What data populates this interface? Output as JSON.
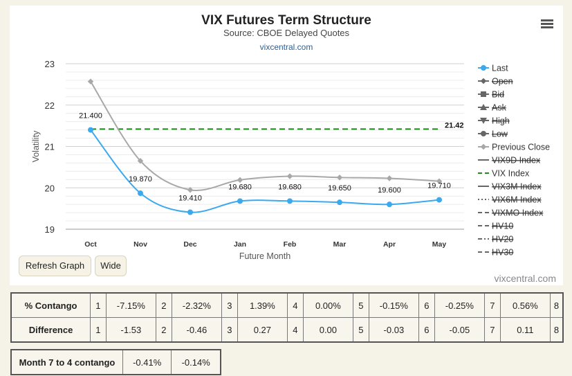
{
  "header": {
    "title": "VIX Futures Term Structure",
    "subtitle": "Source: CBOE Delayed Quotes",
    "url": "vixcentral.com"
  },
  "chart_data": {
    "type": "line",
    "xlabel": "Future Month",
    "ylabel": "Volatility",
    "categories": [
      "Oct",
      "Nov",
      "Dec",
      "Jan",
      "Feb",
      "Mar",
      "Apr",
      "May"
    ],
    "ylim": [
      19,
      23
    ],
    "yticks": [
      19,
      20,
      21,
      22,
      23
    ],
    "grid": true,
    "legend_position": "right",
    "series": [
      {
        "name": "Last",
        "values": [
          21.4,
          19.87,
          19.41,
          19.68,
          19.68,
          19.65,
          19.6,
          19.71
        ],
        "labels": [
          "21.400",
          "19.870",
          "19.410",
          "19.680",
          "19.680",
          "19.650",
          "19.600",
          "19.710"
        ],
        "color": "#3aa9ee",
        "visible": true
      },
      {
        "name": "Previous Close",
        "values": [
          22.57,
          20.65,
          19.95,
          20.19,
          20.28,
          20.25,
          20.23,
          20.16
        ],
        "color": "#a8a8a8",
        "visible": true
      },
      {
        "name": "VIX Index",
        "values": [
          21.42,
          21.42,
          21.42,
          21.42,
          21.42,
          21.42,
          21.42,
          21.42
        ],
        "end_label": "21.42",
        "color": "#1a8c1a",
        "visible": true,
        "dashed": true
      }
    ],
    "legend": [
      {
        "name": "Last",
        "marker": "circle",
        "line": "solid",
        "color": "#3aa9ee",
        "hidden": false
      },
      {
        "name": "Open",
        "marker": "diamond",
        "line": "solid",
        "color": "#666",
        "hidden": true
      },
      {
        "name": "Bid",
        "marker": "square",
        "line": "solid",
        "color": "#666",
        "hidden": true
      },
      {
        "name": "Ask",
        "marker": "triangle",
        "line": "solid",
        "color": "#666",
        "hidden": true
      },
      {
        "name": "High",
        "marker": "triangle-down",
        "line": "solid",
        "color": "#666",
        "hidden": true
      },
      {
        "name": "Low",
        "marker": "circle",
        "line": "solid",
        "color": "#666",
        "hidden": true
      },
      {
        "name": "Previous Close",
        "marker": "diamond",
        "line": "solid",
        "color": "#a8a8a8",
        "hidden": false
      },
      {
        "name": "VIX9D Index",
        "marker": "",
        "line": "solid",
        "color": "#666",
        "hidden": true
      },
      {
        "name": "VIX Index",
        "marker": "",
        "line": "dashed",
        "color": "#1a8c1a",
        "hidden": false
      },
      {
        "name": "VIX3M Index",
        "marker": "",
        "line": "solid",
        "color": "#666",
        "hidden": true
      },
      {
        "name": "VIX6M Index",
        "marker": "",
        "line": "dotted",
        "color": "#666",
        "hidden": true
      },
      {
        "name": "VIXMO Index",
        "marker": "",
        "line": "dashed",
        "color": "#666",
        "hidden": true
      },
      {
        "name": "HV10",
        "marker": "",
        "line": "dashed",
        "color": "#666",
        "hidden": true
      },
      {
        "name": "HV20",
        "marker": "",
        "line": "dashdot",
        "color": "#666",
        "hidden": true
      },
      {
        "name": "HV30",
        "marker": "",
        "line": "dashed",
        "color": "#666",
        "hidden": true
      }
    ]
  },
  "buttons": {
    "refresh": "Refresh Graph",
    "wide": "Wide"
  },
  "footer_credit": "vixcentral.com",
  "contango_table": {
    "rows": [
      {
        "label": "% Contango",
        "cells": [
          "1",
          "-7.15%",
          "2",
          "-2.32%",
          "3",
          "1.39%",
          "4",
          "0.00%",
          "5",
          "-0.15%",
          "6",
          "-0.25%",
          "7",
          "0.56%",
          "8"
        ]
      },
      {
        "label": "Difference",
        "cells": [
          "1",
          "-1.53",
          "2",
          "-0.46",
          "3",
          "0.27",
          "4",
          "0.00",
          "5",
          "-0.03",
          "6",
          "-0.05",
          "7",
          "0.11",
          "8"
        ]
      }
    ]
  },
  "month_table": {
    "label": "Month 7 to 4 contango",
    "values": [
      "-0.41%",
      "-0.14%"
    ]
  }
}
